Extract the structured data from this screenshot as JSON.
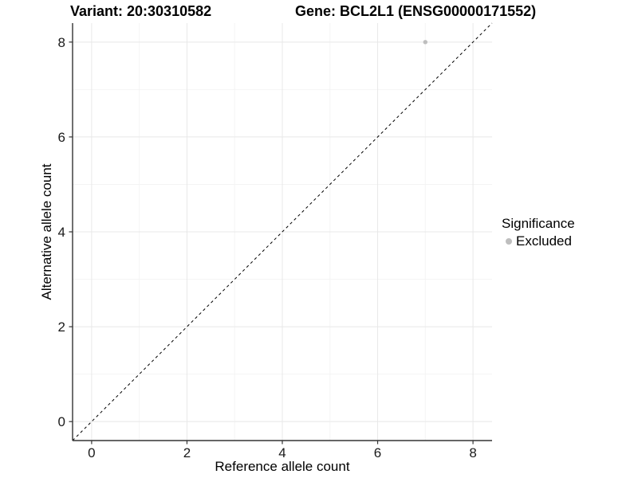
{
  "titles": {
    "variant": "Variant: 20:30310582",
    "gene": "Gene: BCL2L1 (ENSG00000171552)"
  },
  "axes": {
    "x_label": "Reference allele count",
    "y_label": "Alternative allele count"
  },
  "legend": {
    "title": "Significance",
    "items": [
      {
        "label": "Excluded",
        "color": "#bebebe"
      }
    ]
  },
  "colors": {
    "point": "#bebebe",
    "axis_line": "#333333",
    "major_grid": "#e8e8e8",
    "minor_grid": "#f4f4f4",
    "reference_line": "#000000"
  },
  "chart_data": {
    "type": "scatter",
    "title_left": "Variant: 20:30310582",
    "title_right": "Gene: BCL2L1 (ENSG00000171552)",
    "xlabel": "Reference allele count",
    "ylabel": "Alternative allele count",
    "xlim": [
      -0.4,
      8.4
    ],
    "ylim": [
      -0.4,
      8.4
    ],
    "x_ticks": [
      0,
      2,
      4,
      6,
      8
    ],
    "y_ticks": [
      0,
      2,
      4,
      6,
      8
    ],
    "x_minor_ticks": [
      1,
      3,
      5,
      7
    ],
    "y_minor_ticks": [
      1,
      3,
      5,
      7
    ],
    "grid": true,
    "legend_position": "right",
    "legend_title": "Significance",
    "series": [
      {
        "name": "Excluded",
        "color": "#bebebe",
        "points": [
          {
            "x": 7,
            "y": 8
          }
        ]
      }
    ],
    "reference_line": {
      "type": "identity",
      "style": "dashed",
      "color": "#000000"
    }
  }
}
